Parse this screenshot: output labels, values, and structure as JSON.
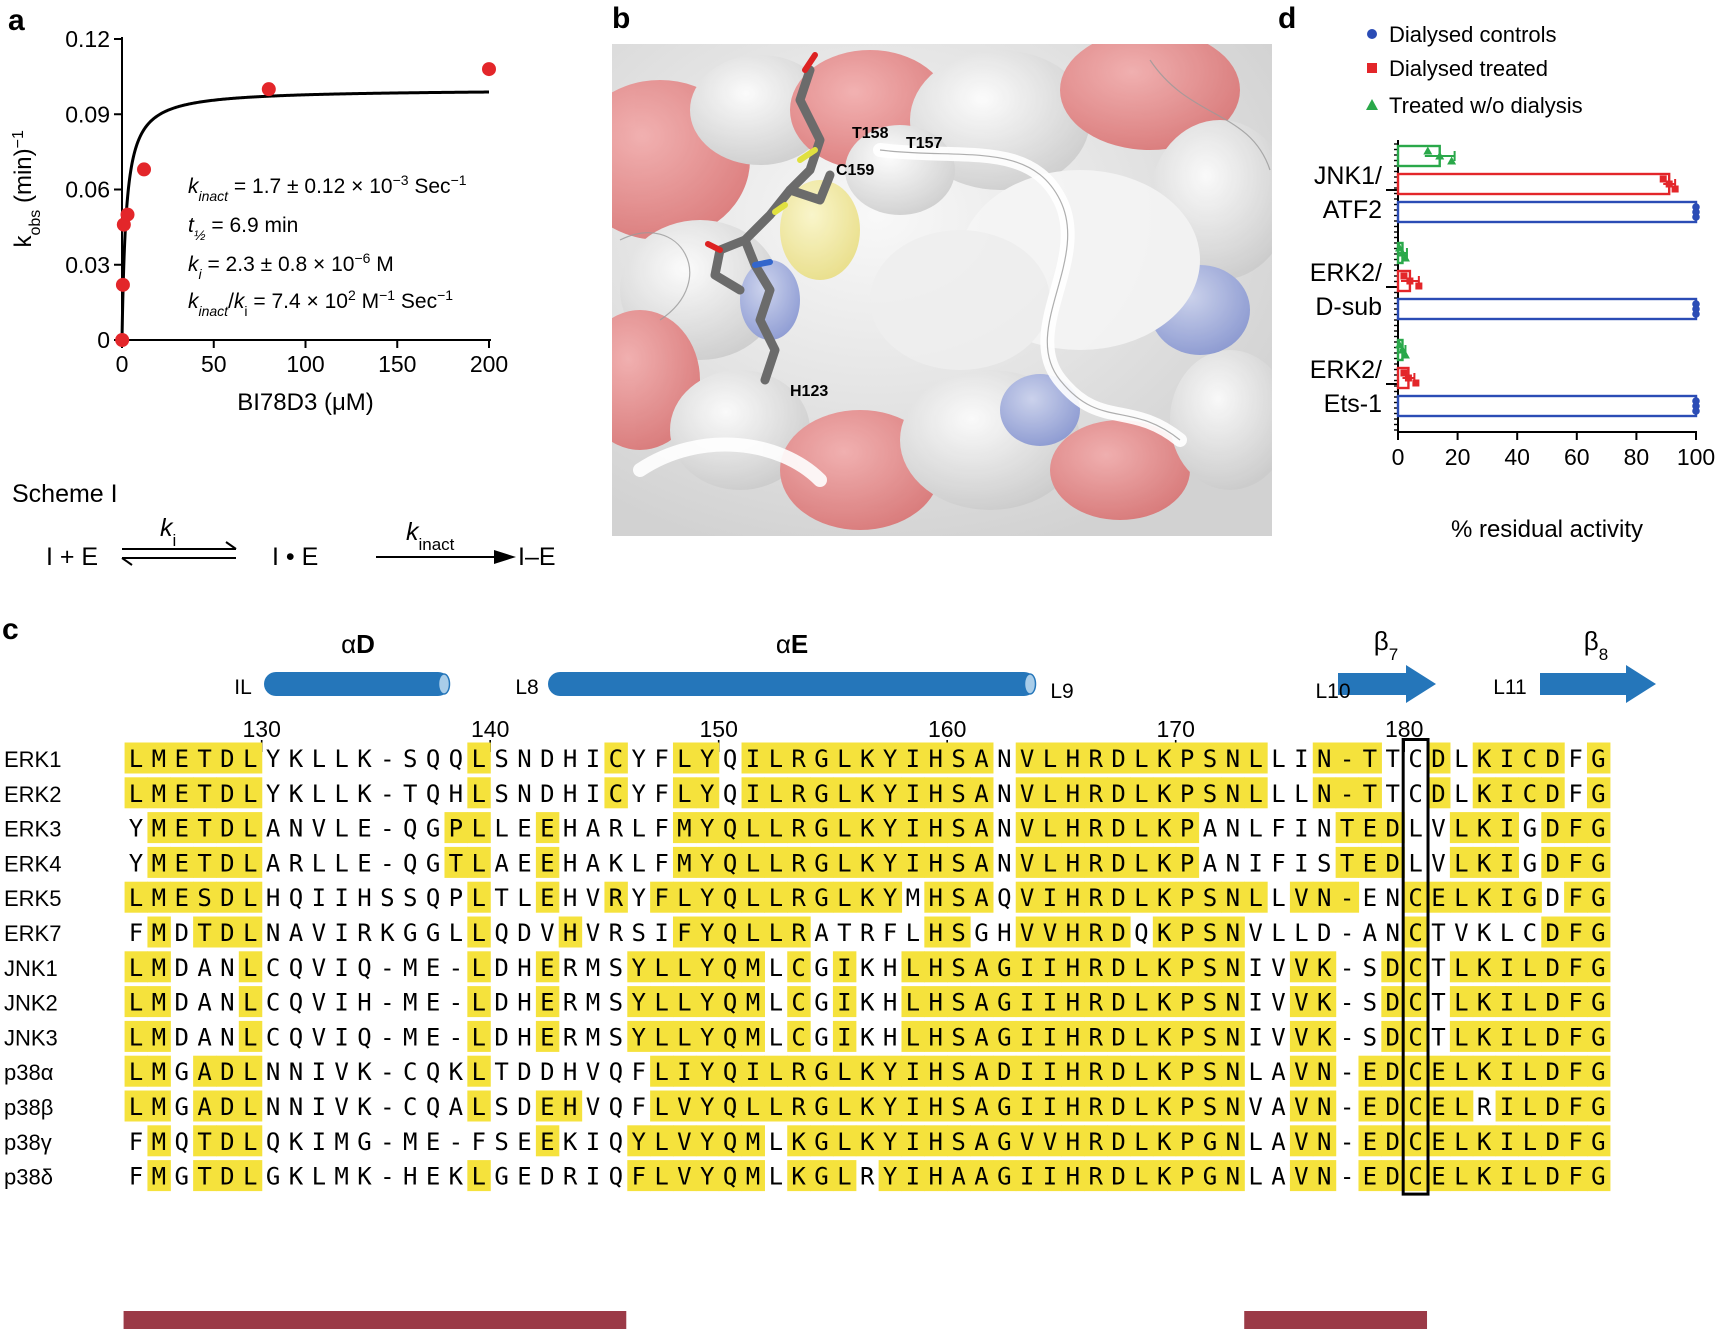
{
  "panel_labels": {
    "a": "a",
    "b": "b",
    "c": "c",
    "d": "d"
  },
  "colors": {
    "fit": "#000000",
    "points": "#e3262a",
    "helix": "#2576ba",
    "highlight": "#f5e23c",
    "bar_bottom": "#9b3a47",
    "blue": "#2b4cb5",
    "red": "#e3262a",
    "green": "#2aa84a"
  },
  "panel_a": {
    "annotations": [
      {
        "pre": "",
        "it": "k",
        "sub": "inact",
        "mid": " = 1.7 ± 0.12 × 10",
        "sup": "−3",
        "post": " Sec",
        "sup2": "−1"
      },
      {
        "pre": "",
        "it": "t",
        "sub": "½",
        "mid": " = 6.9 min",
        "sup": "",
        "post": "",
        "sup2": ""
      },
      {
        "pre": "",
        "it": "k",
        "sub": "i",
        "mid": " = 2.3 ± 0.8 × 10",
        "sup": "−6",
        "post": " M",
        "sup2": ""
      },
      {
        "pre": "",
        "it": "k",
        "sub": "inact",
        "mid": "/",
        "it2": "k",
        "sub2": "i",
        "mid2": " = 7.4 × 10",
        "sup": "2",
        "post": " M",
        "sup2": "−1",
        "post2": " Sec",
        "sup3": "−1"
      }
    ],
    "scheme": {
      "title": "Scheme I",
      "left": "I + E",
      "k1": "k",
      "k1_sub": "i",
      "middle": "I • E",
      "k2": "k",
      "k2_sub": "inact",
      "right": "I–E"
    }
  },
  "chart_data": [
    {
      "type": "scatter",
      "title": "",
      "xlabel": "BI78D3 (μM)",
      "ylabel": "k",
      "ylabel_sub": "obs",
      "ylabel_post": " (min)",
      "ylabel_sup": "−1",
      "xlim": [
        0,
        200
      ],
      "ylim": [
        0,
        0.12
      ],
      "xticks": [
        0,
        50,
        100,
        150,
        200
      ],
      "yticks": [
        0,
        0.03,
        0.06,
        0.09,
        0.12
      ],
      "ytick_labels": [
        "0",
        "0.03",
        "0.06",
        "0.09",
        "0.12"
      ],
      "points": {
        "x": [
          0.1,
          0.5,
          1,
          3,
          12,
          80,
          200
        ],
        "y": [
          0.0,
          0.022,
          0.046,
          0.05,
          0.068,
          0.1,
          0.108
        ]
      },
      "fit": {
        "model": "kinact*x/(ki+x)",
        "kinact": 0.1,
        "ki": 2.3
      },
      "grid": false
    },
    {
      "type": "bar",
      "orientation": "horizontal",
      "xlabel": "% residual activity",
      "xlim": [
        0,
        100
      ],
      "xticks": [
        0,
        20,
        40,
        60,
        80,
        100
      ],
      "categories": [
        [
          "JNK1/",
          "ATF2"
        ],
        [
          "ERK2/",
          "D-sub"
        ],
        [
          "ERK2/",
          "Ets-1"
        ]
      ],
      "series": [
        {
          "name": "Dialysed controls",
          "marker": "circle",
          "values": [
            100,
            100,
            100
          ],
          "points": [
            [
              100,
              100,
              100
            ],
            [
              100,
              100,
              100
            ],
            [
              100,
              100,
              100
            ]
          ]
        },
        {
          "name": "Dialysed treated",
          "marker": "square",
          "values": [
            91,
            4,
            3.5
          ],
          "err": [
            2,
            3,
            2
          ],
          "points": [
            [
              89,
              91,
              93
            ],
            [
              2,
              4,
              7
            ],
            [
              2,
              3.5,
              6
            ]
          ]
        },
        {
          "name": "Treated w/o dialysis",
          "marker": "triangle",
          "values": [
            14,
            1.5,
            1.5
          ],
          "err": [
            5,
            1.5,
            1
          ],
          "points": [
            [
              10,
              14,
              18
            ],
            [
              0.5,
              1.5,
              2.5
            ],
            [
              0.5,
              1.5,
              2.5
            ]
          ]
        }
      ],
      "legend": "top"
    }
  ],
  "panel_b": {
    "residues": [
      "T158",
      "T157",
      "C159",
      "H123"
    ]
  },
  "panel_c": {
    "structure": {
      "helices": [
        {
          "name": "α",
          "bold": "D"
        },
        {
          "name": "α",
          "bold": "E"
        }
      ],
      "strands": [
        {
          "name": "β",
          "sub": "7"
        },
        {
          "name": "β",
          "sub": "8"
        }
      ],
      "loops": [
        "IL",
        "L8",
        "L9",
        "L10",
        "L11"
      ]
    },
    "ruler": {
      "start_number": 124,
      "labels": [
        "130",
        "140",
        "150",
        "160",
        "170",
        "180"
      ]
    },
    "sequences": [
      {
        "name": "ERK1",
        "seq": "LMETDLYKLLK-SQQLSNDHICYFLYQILRGLKYIHSANVLHRDLKPSNLLIN-TTCDLKICDFG",
        "hl": "yyyyyynnnnnnnnnynnnnnynnyynyyyyyyyyyyynyyyyyyyyyyynnyyynnynyyyynyyy"
      },
      {
        "name": "ERK2",
        "seq": "LMETDLYKLLK-TQHLSNDHICYFLYQILRGLKYIHSANVLHRDLKPSNLLLN-TTCDLKICDFG",
        "hl": "yyyyyynnnnnnnnnynnnnnynnyynyyyyyyyyyyynyyyyyyyyyyynnyyynnynyyyynyyy"
      },
      {
        "name": "ERK3",
        "seq": "YMETDLANVLE-QGPLLEEHARLFMYQLLRGLKYIHSANVLHRDLKPANLFINTEDLVLKIGDFG",
        "hl": "nyyyyynnnnnnnnyynnynnnnnyyyyyyyyyyyyyynyyyyyyyynnnnnnyyynnyyynyyy"
      },
      {
        "name": "ERK4",
        "seq": "YMETDLARLLE-QGTLAEEHAKLFMYQLLRGLKYIHSANVLHRDLKPANIFISTEDLVLKIGDFG",
        "hl": "nyyyyynnnnnnnnyynnynnnnnyyyyyyyyyyyyyynyyyyyyyynnnnnnyyynnyyynyyy"
      },
      {
        "name": "ERK5",
        "seq": "LMESDLHQIIHSSQPLTLEHVRYFLYQLLRGLKYMHSAQVIHRDLKPSNLLVN-ENCELKIGDFG",
        "hl": "yyyyyynnnnnnnnnynnynnynyyyyyyyyyyynyyynyyyyyyyyyyynyyynnyyyyyynyyy"
      },
      {
        "name": "ERK7",
        "seq": "FMDTDLNAVIRKGGLLQDVHVRSIFYQLLRATRFLHSGHVVHRDQKPSNVLLD-ANCTVKLCDFG",
        "hl": "nynyyynnnnnnnnnynnnynnnnyyyyyynnnnnyynnyyyyynyyyynnnnnnnynnnnnyyy"
      },
      {
        "name": "JNK1",
        "seq": "LMDANLCQVIQ-ME-LDHERMSYLLYQMLCGIKHLHSAGIIHRDLKPSNIVVK-SDCTLKILDFG",
        "hl": "yynnnynnnnnnnnnynnynnnyyyyyynynynnyyyyyyyyyyyyyyynnyynnyynyyyyyyy"
      },
      {
        "name": "JNK2",
        "seq": "LMDANLCQVIH-ME-LDHERMSYLLYQMLCGIKHLHSAGIIHRDLKPSNIVVK-SDCTLKILDFG",
        "hl": "yynnnynnnnnnnnnynnynnnyyyyyynynynnyyyyyyyyyyyyyyynnyynnyynyyyyyyy"
      },
      {
        "name": "JNK3",
        "seq": "LMDANLCQVIQ-ME-LDHERMSYLLYQMLCGIKHLHSAGIIHRDLKPSNIVVK-SDCTLKILDFG",
        "hl": "yynnnynnnnnnnnnynnynnnyyyyyynynynnyyyyyyyyyyyyyyynnyynnyynyyyyyyy"
      },
      {
        "name": "p38α",
        "seq": "LMGADLNNIVK-CQKLTDDHVQFLIYQILRGLKYIHSADIIHRDLKPSNLAVN-EDCELKILDFG",
        "hl": "yynyyynnnnnnnnnynnnnnnnyyyyyyyyyyyyyyyyyyyyyyyyyynnyynyyyyyyyyyyy"
      },
      {
        "name": "p38β",
        "seq": "LMGADLNNIVK-CQALSDEHVQFLVYQLLRGLKYIHSAGIIHRDLKPSNVAVN-EDCELRILDFG",
        "hl": "yynyyynnnnnnnnnynnyynnnyyyyyyyyyyyyyyyyyyyyyyyyyynnyynyyyyynyyyyy"
      },
      {
        "name": "p38γ",
        "seq": "FMQTDLQKIMG-ME-FSEEKIQYLVYQMLKGLKYIHSAGVVHRDLKPGNLAVN-EDCELKILDFG",
        "hl": "nynyyynnnnnnnnnnnnynnnyyyyyynyyyyyyyyyyyyyyyyyyyynnyynyyyyyyyyyyy"
      },
      {
        "name": "p38δ",
        "seq": "FMGTDLGKLMK-HEKLGEDRIQFLVYQMLKGLRYIHAAGIIHRDLKPGNLAVN-EDCELKILDFG",
        "hl": "nynyyynnnnnnnnnynnnnnnyyyyyynyyynyyyyyyyyyyyyyyyynnyynyyyyyyyyyyy"
      }
    ]
  },
  "panel_d": {
    "legend": [
      "Dialysed controls",
      "Dialysed treated",
      "Treated w/o dialysis"
    ]
  }
}
